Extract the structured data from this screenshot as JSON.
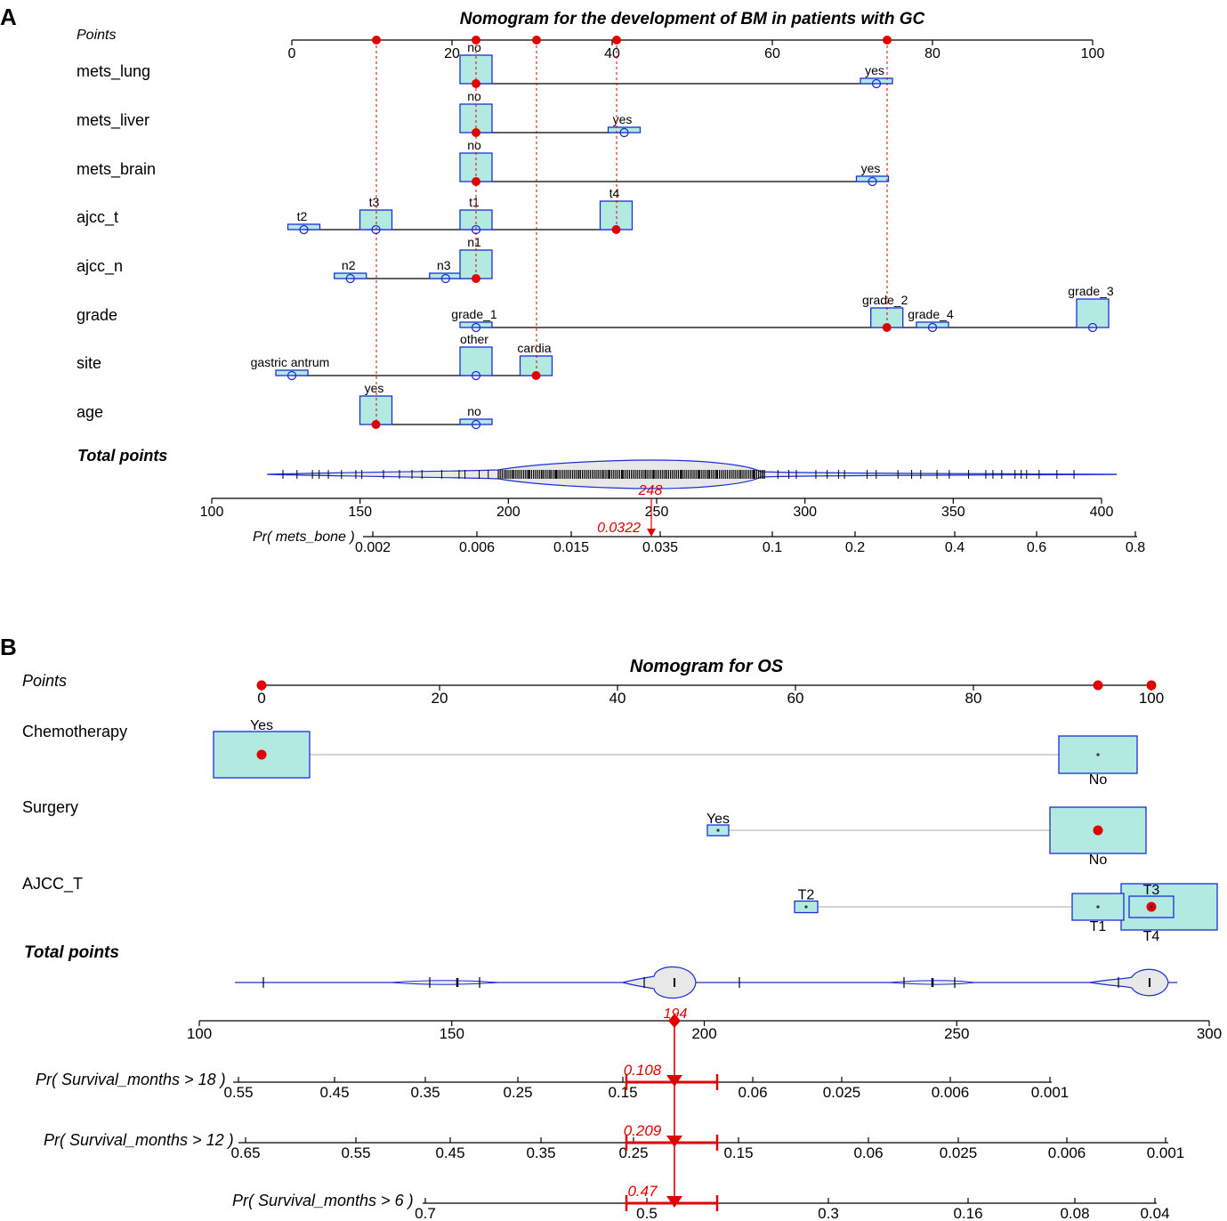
{
  "panel_a": {
    "letter": "A",
    "title": "Nomogram for the development of BM in patients with GC",
    "points_label": "Points",
    "total_label": "Total points",
    "prob_label": "Pr( mets_bone )",
    "total_value": "248",
    "prob_value": "0.0322"
  },
  "panel_b": {
    "letter": "B",
    "title": "Nomogram for OS",
    "points_label": "Points",
    "total_label": "Total points",
    "total_value": "194"
  },
  "chart_data": [
    {
      "type": "nomogram",
      "title": "Nomogram for the development of BM in patients with GC",
      "points_axis": {
        "range": [
          0,
          100
        ],
        "ticks": [
          0,
          20,
          40,
          60,
          80,
          100
        ],
        "labels": [
          "0",
          "20",
          "40",
          "60",
          "80",
          "100"
        ]
      },
      "variables": [
        {
          "name": "mets_lung",
          "levels": [
            {
              "label": "no",
              "points": 23,
              "freq": "high",
              "selected": true
            },
            {
              "label": "yes",
              "points": 73,
              "freq": "low",
              "selected": false
            }
          ]
        },
        {
          "name": "mets_liver",
          "levels": [
            {
              "label": "no",
              "points": 23,
              "freq": "high",
              "selected": true
            },
            {
              "label": "yes",
              "points": 41.5,
              "freq": "low",
              "selected": false
            }
          ]
        },
        {
          "name": "mets_brain",
          "levels": [
            {
              "label": "no",
              "points": 23,
              "freq": "high",
              "selected": true
            },
            {
              "label": "yes",
              "points": 72.5,
              "freq": "low",
              "selected": false
            }
          ]
        },
        {
          "name": "ajcc_t",
          "levels": [
            {
              "label": "t2",
              "points": 1.5,
              "freq": "low",
              "selected": false
            },
            {
              "label": "t3",
              "points": 10.5,
              "freq": "mid",
              "selected": false
            },
            {
              "label": "t1",
              "points": 23,
              "freq": "mid",
              "selected": false
            },
            {
              "label": "t4",
              "points": 40.5,
              "freq": "high",
              "selected": true
            }
          ]
        },
        {
          "name": "ajcc_n",
          "levels": [
            {
              "label": "n2",
              "points": 7.3,
              "freq": "low",
              "selected": false
            },
            {
              "label": "n3",
              "points": 19.2,
              "freq": "low",
              "selected": false
            },
            {
              "label": "n1",
              "points": 23,
              "freq": "high",
              "selected": true
            }
          ]
        },
        {
          "name": "grade",
          "levels": [
            {
              "label": "grade_1",
              "points": 23,
              "freq": "low",
              "selected": false
            },
            {
              "label": "grade_2",
              "points": 74.3,
              "freq": "mid",
              "selected": true
            },
            {
              "label": "grade_4",
              "points": 80,
              "freq": "low",
              "selected": false
            },
            {
              "label": "grade_3",
              "points": 100,
              "freq": "high",
              "selected": false
            }
          ]
        },
        {
          "name": "site",
          "levels": [
            {
              "label": "gastric antrum",
              "points": 0,
              "freq": "low",
              "selected": false
            },
            {
              "label": "other",
              "points": 23,
              "freq": "high",
              "selected": false
            },
            {
              "label": "cardia",
              "points": 30.5,
              "freq": "mid",
              "selected": true
            }
          ]
        },
        {
          "name": "age",
          "levels": [
            {
              "label": "yes",
              "points": 10.5,
              "freq": "high",
              "selected": true
            },
            {
              "label": "no",
              "points": 23,
              "freq": "low",
              "selected": false
            }
          ]
        }
      ],
      "total_points_axis": {
        "range": [
          100,
          400
        ],
        "ticks": [
          100,
          150,
          200,
          250,
          300,
          350,
          400
        ],
        "labels": [
          "100",
          "150",
          "200",
          "250",
          "300",
          "350",
          "400"
        ]
      },
      "probability_axis": {
        "label": "Pr( mets_bone )",
        "labels": [
          "0.002",
          "0.006",
          "0.015",
          "0.035",
          "0.1",
          "0.2",
          "0.4",
          "0.6",
          "0.8"
        ]
      },
      "selected_total": 248,
      "selected_probability": 0.0322
    },
    {
      "type": "nomogram",
      "title": "Nomogram for OS",
      "points_axis": {
        "range": [
          0,
          100
        ],
        "ticks": [
          0,
          20,
          40,
          60,
          80,
          100
        ],
        "labels": [
          "0",
          "20",
          "40",
          "60",
          "80",
          "100"
        ]
      },
      "variables": [
        {
          "name": "Chemotherapy",
          "levels": [
            {
              "label": "Yes",
              "points": 0,
              "freq": "high",
              "selected": true
            },
            {
              "label": "No",
              "points": 94,
              "freq": "high",
              "selected": false
            }
          ]
        },
        {
          "name": "Surgery",
          "levels": [
            {
              "label": "Yes",
              "points": 51.3,
              "freq": "low",
              "selected": false
            },
            {
              "label": "No",
              "points": 94,
              "freq": "high",
              "selected": true
            }
          ]
        },
        {
          "name": "AJCC_T",
          "levels": [
            {
              "label": "T2",
              "points": 61.2,
              "freq": "low",
              "selected": false
            },
            {
              "label": "T1",
              "points": 94,
              "freq": "mid",
              "selected": false
            },
            {
              "label": "T3",
              "points": 100,
              "freq": "mid",
              "selected": true
            },
            {
              "label": "T4",
              "points": 100,
              "freq": "high",
              "selected": false
            }
          ]
        }
      ],
      "total_points_axis": {
        "range": [
          100,
          300
        ],
        "ticks": [
          100,
          150,
          200,
          250,
          300
        ],
        "labels": [
          "100",
          "150",
          "200",
          "250",
          "300"
        ]
      },
      "probability_axes": [
        {
          "label": "Pr( Survival_months > 18 )",
          "labels": [
            "0.55",
            "0.45",
            "0.35",
            "0.25",
            "0.15",
            "0.06",
            "0.025",
            "0.006",
            "0.001"
          ],
          "selected": 0.108
        },
        {
          "label": "Pr( Survival_months > 12 )",
          "labels": [
            "0.65",
            "0.55",
            "0.45",
            "0.35",
            "0.25",
            "0.15",
            "0.06",
            "0.025",
            "0.006",
            "0.001"
          ],
          "selected": 0.209
        },
        {
          "label": "Pr( Survival_months > 6 )",
          "labels": [
            "0.7",
            "0.5",
            "0.3",
            "0.16",
            "0.08",
            "0.04"
          ],
          "selected": 0.47
        }
      ],
      "selected_total": 194
    }
  ]
}
